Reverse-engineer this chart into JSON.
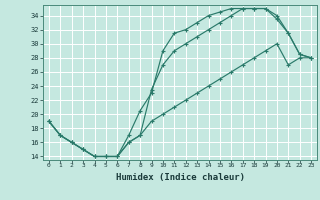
{
  "title": "",
  "xlabel": "Humidex (Indice chaleur)",
  "ylabel": "",
  "background_color": "#c5e8e0",
  "grid_color": "#ffffff",
  "line_color": "#2a7a6a",
  "xlim": [
    -0.5,
    23.5
  ],
  "ylim": [
    13.5,
    35.5
  ],
  "xticks": [
    0,
    1,
    2,
    3,
    4,
    5,
    6,
    7,
    8,
    9,
    10,
    11,
    12,
    13,
    14,
    15,
    16,
    17,
    18,
    19,
    20,
    21,
    22,
    23
  ],
  "yticks": [
    14,
    16,
    18,
    20,
    22,
    24,
    26,
    28,
    30,
    32,
    34
  ],
  "line1_x": [
    0,
    1,
    2,
    3,
    4,
    5,
    6,
    7,
    8,
    9,
    10,
    11,
    12,
    13,
    14,
    15,
    16,
    17,
    18,
    19,
    20,
    21,
    22,
    23
  ],
  "line1_y": [
    19,
    17,
    16,
    15,
    14,
    14,
    14,
    17,
    20.5,
    23,
    29,
    31.5,
    32,
    33,
    34,
    34.5,
    35,
    35,
    35,
    35,
    33.5,
    31.5,
    28.5,
    28
  ],
  "line2_x": [
    0,
    1,
    2,
    3,
    4,
    5,
    6,
    7,
    8,
    9,
    10,
    11,
    12,
    13,
    14,
    15,
    16,
    17,
    18,
    19,
    20,
    21,
    22,
    23
  ],
  "line2_y": [
    19,
    17,
    16,
    15,
    14,
    14,
    14,
    16,
    17,
    23.5,
    27,
    29,
    30,
    31,
    32,
    33,
    34,
    35,
    35,
    35,
    34,
    31.5,
    28.5,
    28
  ],
  "line3_x": [
    0,
    1,
    2,
    3,
    4,
    5,
    6,
    7,
    8,
    9,
    10,
    11,
    12,
    13,
    14,
    15,
    16,
    17,
    18,
    19,
    20,
    21,
    22,
    23
  ],
  "line3_y": [
    19,
    17,
    16,
    15,
    14,
    14,
    14,
    16,
    17,
    19,
    20,
    21,
    22,
    23,
    24,
    25,
    26,
    27,
    28,
    29,
    30,
    27,
    28,
    28
  ]
}
